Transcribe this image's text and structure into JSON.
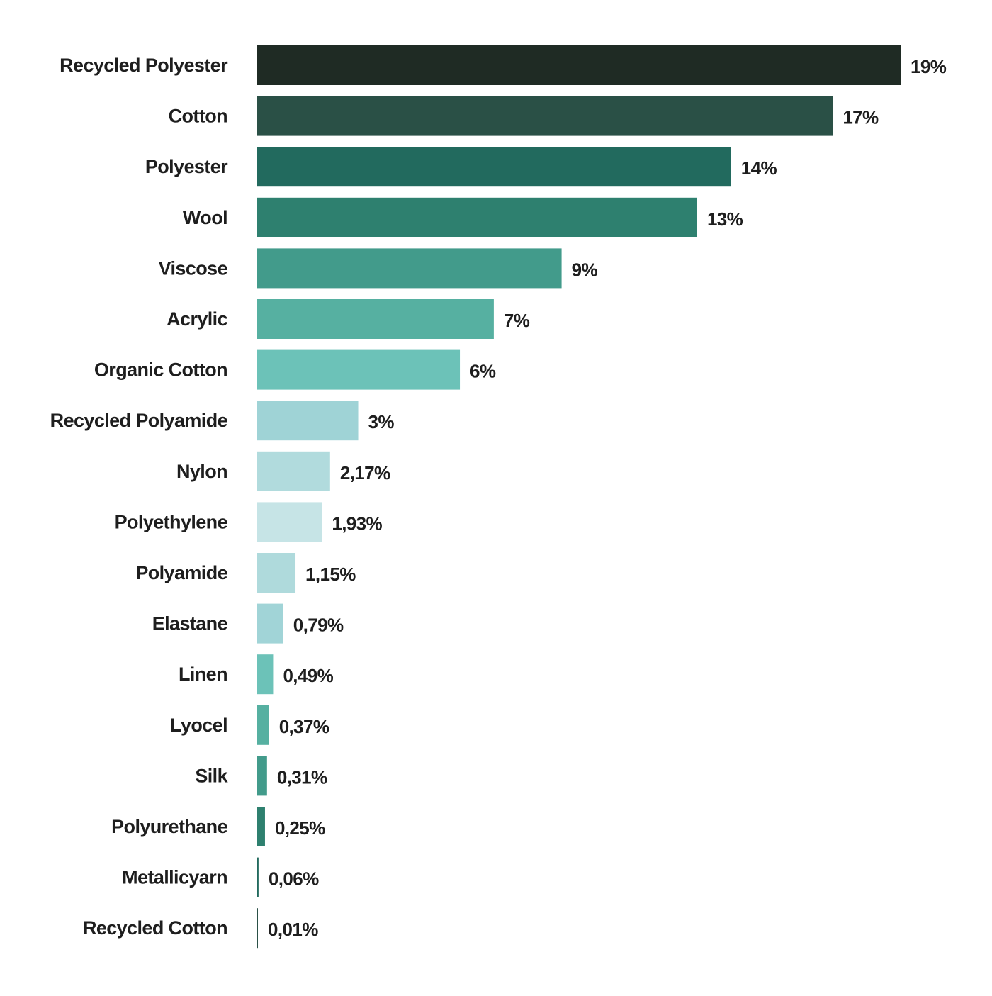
{
  "chart_data": {
    "type": "bar",
    "orientation": "horizontal",
    "title": "",
    "xlabel": "",
    "ylabel": "",
    "grid": false,
    "legend": "none",
    "xlim": [
      0,
      19
    ],
    "categories": [
      "Recycled Polyester",
      "Cotton",
      "Polyester",
      "Wool",
      "Viscose",
      "Acrylic",
      "Organic Cotton",
      "Recycled Polyamide",
      "Nylon",
      "Polyethylene",
      "Polyamide",
      "Elastane",
      "Linen",
      "Lyocel",
      "Silk",
      "Polyurethane",
      "Metallicyarn",
      "Recycled Cotton"
    ],
    "values": [
      19,
      17,
      14,
      13,
      9,
      7,
      6,
      3,
      2.17,
      1.93,
      1.15,
      0.79,
      0.49,
      0.37,
      0.31,
      0.25,
      0.06,
      0.01
    ],
    "value_labels": [
      "19%",
      "17%",
      "14%",
      "13%",
      "9%",
      "7%",
      "6%",
      "3%",
      "2,17%",
      "1,93%",
      "1,15%",
      "0,79%",
      "0,49%",
      "0,37%",
      "0,31%",
      "0,25%",
      "0,06%",
      "0,01%"
    ],
    "colors": [
      "#1f2b24",
      "#2a5046",
      "#226a5e",
      "#2e806f",
      "#429b8b",
      "#56b0a1",
      "#6cc2b8",
      "#9fd3d6",
      "#b1dbdd",
      "#c6e4e6",
      "#afdadc",
      "#a1d4d7",
      "#6cc2b8",
      "#56b0a1",
      "#429b8b",
      "#2e806f",
      "#226a5e",
      "#2a5046"
    ]
  }
}
